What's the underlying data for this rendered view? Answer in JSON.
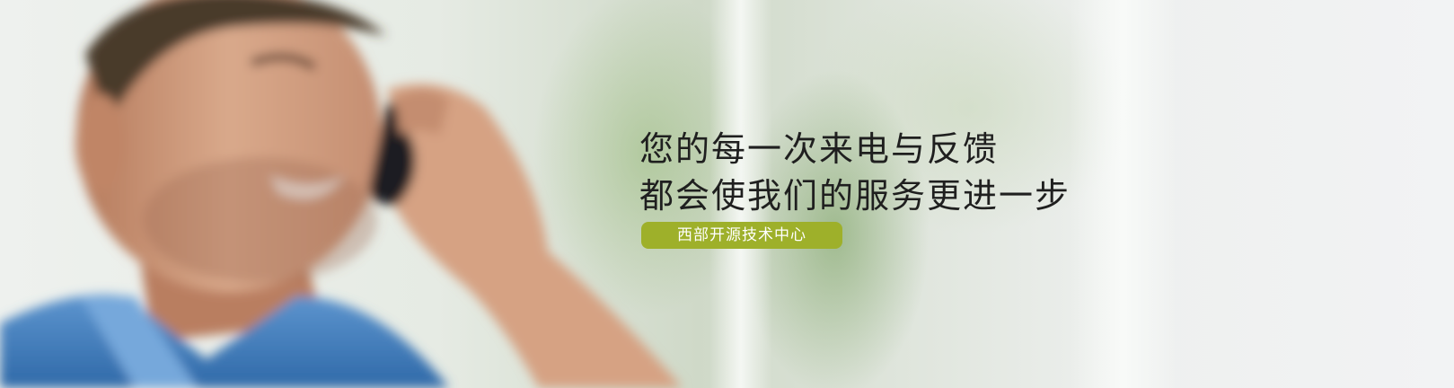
{
  "banner": {
    "headline_line1": "您的每一次来电与反馈",
    "headline_line2": "都会使我们的服务更进一步",
    "badge_label": "西部开源技术中心"
  },
  "colors": {
    "badge_bg": "#9eb02a",
    "headline_text": "#1f1f1f",
    "shirt_blue": "#3f7bb8"
  }
}
